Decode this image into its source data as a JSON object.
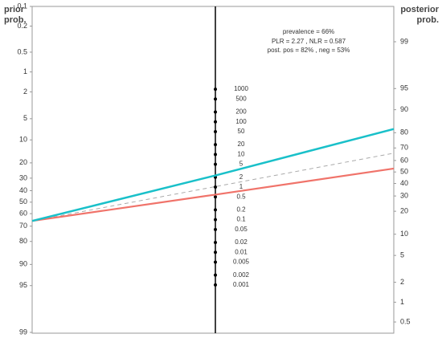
{
  "chart_data": {
    "type": "nomogram",
    "prior_label": [
      "prior",
      "prob."
    ],
    "posterior_label": [
      "posterior",
      "prob."
    ],
    "prior_lim": [
      0.1,
      99
    ],
    "prior_ticks": [
      0.1,
      0.2,
      0.5,
      1,
      2,
      5,
      10,
      20,
      30,
      40,
      50,
      60,
      70,
      80,
      90,
      95,
      99
    ],
    "lr_ticks": [
      1000,
      500,
      200,
      100,
      50,
      20,
      10,
      5,
      2,
      1,
      0.5,
      0.2,
      0.1,
      0.05,
      0.02,
      0.01,
      0.005,
      0.002,
      0.001
    ],
    "posterior_ticks": [
      99,
      95,
      90,
      80,
      70,
      60,
      50,
      40,
      30,
      20,
      10,
      5,
      2,
      1,
      0.5
    ],
    "annotations": [
      "prevalence = 66%",
      "PLR = 2.27 , NLR = 0.587",
      "post. pos = 82% , neg = 53%"
    ],
    "prevalence": 66,
    "plr": 2.27,
    "nlr": 0.587,
    "post_pos": 82,
    "post_neg": 53,
    "colors": {
      "positive": "#19c0c9",
      "negative": "#f0736a",
      "reference": "#aaaaaa"
    }
  }
}
